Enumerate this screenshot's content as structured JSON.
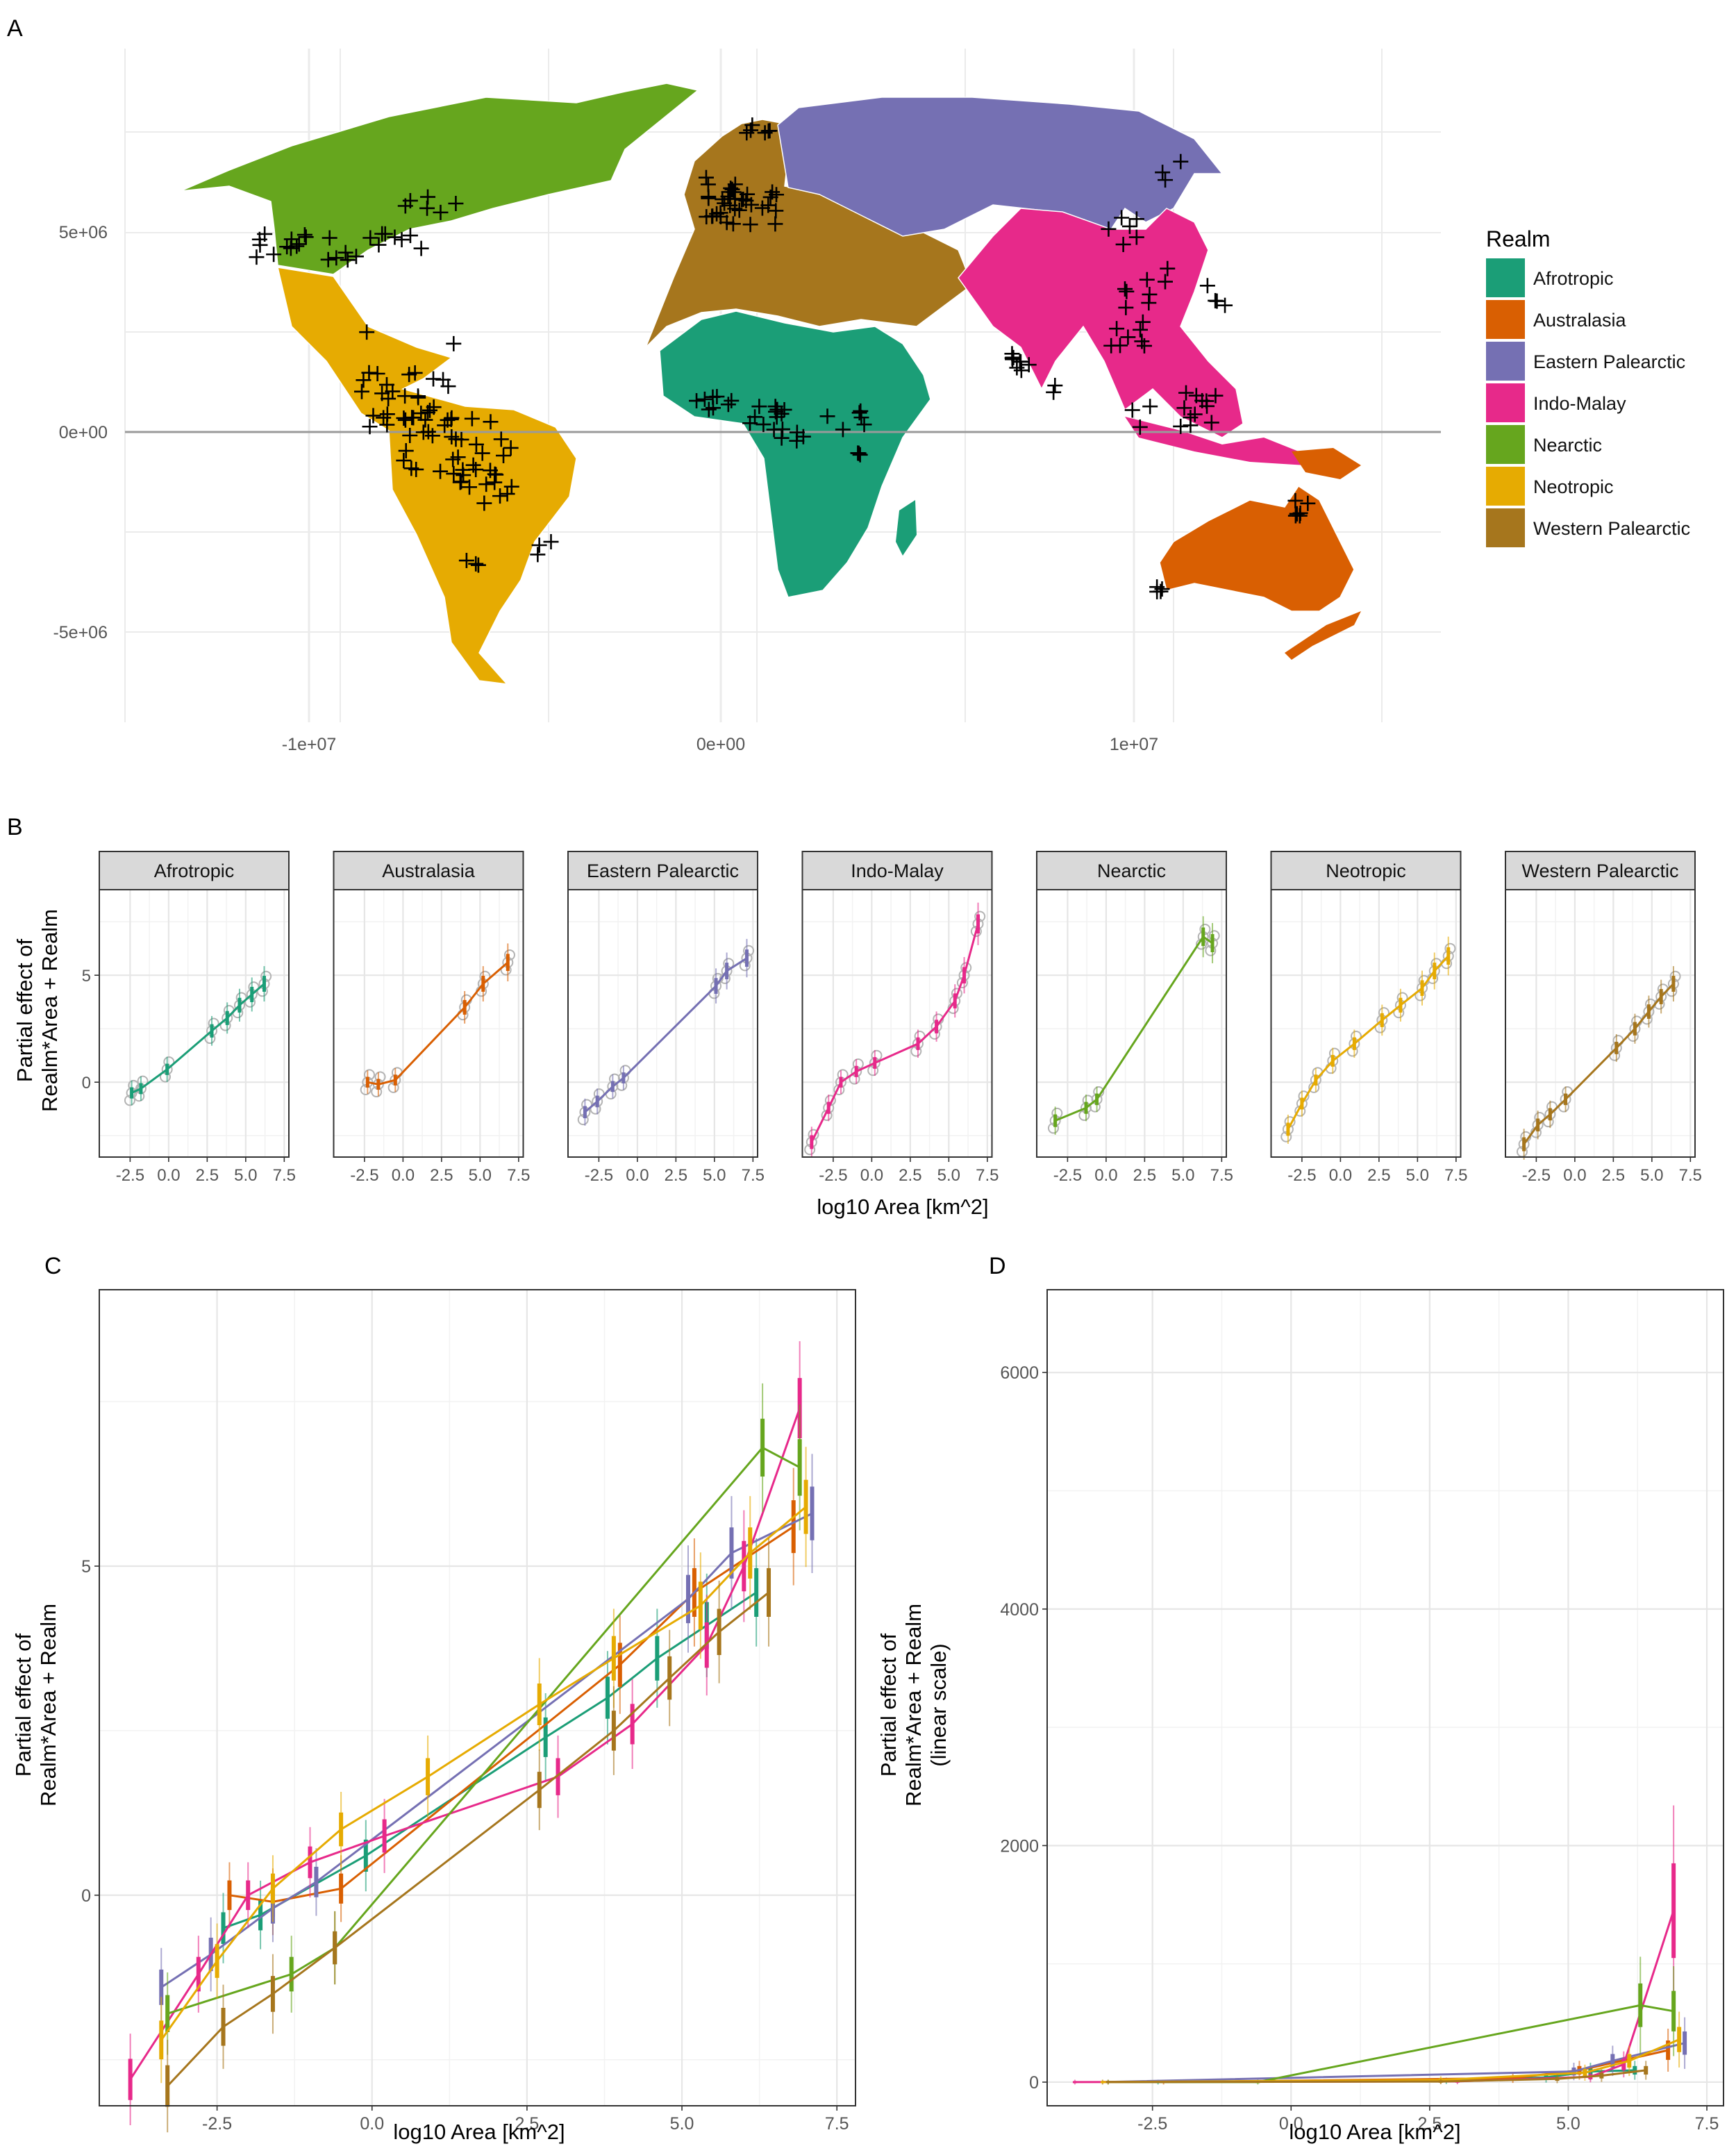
{
  "panels": {
    "A": "A",
    "B": "B",
    "C": "C",
    "D": "D"
  },
  "colors": {
    "Afrotropic": "#1b9e77",
    "Australasia": "#d95f02",
    "Eastern Palearctic": "#7570b3",
    "Indo-Malay": "#e7298a",
    "Nearctic": "#66a61e",
    "Neotropic": "#e6ab02",
    "Western Palearctic": "#a6761d",
    "observed": "#b3b3b3"
  },
  "chart_data": [
    {
      "panel": "A",
      "type": "map",
      "legend_title": "Realm",
      "legend_placement": "right",
      "legend": [
        "Afrotropic",
        "Australasia",
        "Eastern Palearctic",
        "Indo-Malay",
        "Nearctic",
        "Neotropic",
        "Western Palearctic"
      ],
      "xticks": [
        "-1e+07",
        "0e+00",
        "1e+07"
      ],
      "yticks": [
        "5e+06",
        "0e+00",
        "-5e+06"
      ],
      "grid": true
    },
    {
      "panel": "B",
      "type": "line",
      "xlabel": "log10 Area [km^2]",
      "ylabel": [
        "Partial effect of",
        "Realm*Area + Realm"
      ],
      "facets": [
        "Afrotropic",
        "Australasia",
        "Eastern Palearctic",
        "Indo-Malay",
        "Nearctic",
        "Neotropic",
        "Western Palearctic"
      ],
      "xticks": [
        "-2.5",
        "0.0",
        "2.5",
        "5.0",
        "7.5"
      ],
      "yticks": [
        "0",
        "5"
      ],
      "xlim": [
        -4.5,
        7.8
      ],
      "ylim": [
        -3.5,
        9
      ],
      "series": [
        {
          "name": "Afrotropic",
          "x": [
            -2.4,
            -1.8,
            -0.1,
            2.8,
            3.8,
            4.6,
            5.4,
            6.2
          ],
          "y": [
            -0.5,
            -0.3,
            0.6,
            2.4,
            3.0,
            3.6,
            4.1,
            4.6
          ]
        },
        {
          "name": "Australasia",
          "x": [
            -2.3,
            -1.6,
            -0.5,
            4.0,
            5.2,
            6.8
          ],
          "y": [
            0.0,
            -0.1,
            0.1,
            3.5,
            4.6,
            5.6
          ]
        },
        {
          "name": "Eastern Palearctic",
          "x": [
            -3.4,
            -2.6,
            -1.6,
            -0.9,
            5.1,
            5.8,
            7.1
          ],
          "y": [
            -1.4,
            -0.9,
            -0.2,
            0.2,
            4.5,
            5.2,
            5.8
          ]
        },
        {
          "name": "Indo-Malay",
          "x": [
            -3.9,
            -2.8,
            -2.0,
            -1.0,
            0.2,
            3.0,
            4.2,
            5.4,
            6.0,
            6.9
          ],
          "y": [
            -2.8,
            -1.2,
            0.0,
            0.5,
            0.9,
            1.8,
            2.6,
            3.8,
            5.0,
            7.4
          ]
        },
        {
          "name": "Nearctic",
          "x": [
            -3.3,
            -1.3,
            -0.6,
            6.3,
            6.9
          ],
          "y": [
            -1.8,
            -1.2,
            -0.8,
            6.8,
            6.5
          ]
        },
        {
          "name": "Neotropic",
          "x": [
            -3.4,
            -2.5,
            -1.6,
            -0.5,
            0.9,
            2.7,
            3.9,
            5.3,
            6.1,
            7.0
          ],
          "y": [
            -2.2,
            -1.0,
            0.1,
            1.0,
            1.8,
            2.9,
            3.6,
            4.4,
            5.2,
            5.9
          ]
        },
        {
          "name": "Western Palearctic",
          "x": [
            -3.3,
            -2.4,
            -1.6,
            -0.6,
            2.7,
            3.9,
            4.8,
            5.6,
            6.4
          ],
          "y": [
            -2.9,
            -2.0,
            -1.5,
            -0.8,
            1.6,
            2.5,
            3.3,
            4.0,
            4.6
          ]
        }
      ]
    },
    {
      "panel": "C",
      "type": "line",
      "xlabel": "log10 Area [km^2]",
      "ylabel": [
        "Partial effect of",
        "Realm*Area + Realm"
      ],
      "xticks": [
        "-2.5",
        "0.0",
        "2.5",
        "5.0",
        "7.5"
      ],
      "yticks": [
        "0",
        "5"
      ],
      "xlim": [
        -4.4,
        7.8
      ],
      "ylim": [
        -3.2,
        9.2
      ],
      "series": [
        {
          "name": "Afrotropic",
          "x": [
            -2.4,
            -1.8,
            -0.1,
            2.8,
            3.8,
            4.6,
            5.4,
            6.2
          ],
          "y": [
            -0.5,
            -0.3,
            0.6,
            2.4,
            3.0,
            3.6,
            4.1,
            4.6
          ]
        },
        {
          "name": "Australasia",
          "x": [
            -2.3,
            -1.6,
            -0.5,
            4.0,
            5.2,
            6.8
          ],
          "y": [
            0.0,
            -0.1,
            0.1,
            3.5,
            4.6,
            5.6
          ]
        },
        {
          "name": "Eastern Palearctic",
          "x": [
            -3.4,
            -2.6,
            -1.6,
            -0.9,
            5.1,
            5.8,
            7.1
          ],
          "y": [
            -1.4,
            -0.9,
            -0.2,
            0.2,
            4.5,
            5.2,
            5.8
          ]
        },
        {
          "name": "Indo-Malay",
          "x": [
            -3.9,
            -2.8,
            -2.0,
            -1.0,
            0.2,
            3.0,
            4.2,
            5.4,
            6.0,
            6.9
          ],
          "y": [
            -2.8,
            -1.2,
            0.0,
            0.5,
            0.9,
            1.8,
            2.6,
            3.8,
            5.0,
            7.4
          ]
        },
        {
          "name": "Nearctic",
          "x": [
            -3.3,
            -1.3,
            -0.6,
            6.3,
            6.9
          ],
          "y": [
            -1.8,
            -1.2,
            -0.8,
            6.8,
            6.5
          ]
        },
        {
          "name": "Neotropic",
          "x": [
            -3.4,
            -2.5,
            -1.6,
            -0.5,
            0.9,
            2.7,
            3.9,
            5.3,
            6.1,
            7.0
          ],
          "y": [
            -2.2,
            -1.0,
            0.1,
            1.0,
            1.8,
            2.9,
            3.6,
            4.4,
            5.2,
            5.9
          ]
        },
        {
          "name": "Western Palearctic",
          "x": [
            -3.3,
            -2.4,
            -1.6,
            -0.6,
            2.7,
            3.9,
            4.8,
            5.6,
            6.4
          ],
          "y": [
            -2.9,
            -2.0,
            -1.5,
            -0.8,
            1.6,
            2.5,
            3.3,
            4.0,
            4.6
          ]
        }
      ]
    },
    {
      "panel": "D",
      "type": "line",
      "xlabel": "log10 Area [km^2]",
      "ylabel": [
        "Partial effect of",
        "Realm*Area + Realm",
        "(linear scale)"
      ],
      "xticks": [
        "-2.5",
        "0.0",
        "2.5",
        "5.0",
        "7.5"
      ],
      "yticks": [
        "0",
        "2000",
        "4000",
        "6000"
      ],
      "xlim": [
        -4.4,
        7.8
      ],
      "ylim": [
        -200,
        6700
      ],
      "series": [
        {
          "name": "Afrotropic",
          "x": [
            -2.4,
            2.8,
            4.6,
            5.4,
            6.2
          ],
          "y": [
            0,
            11,
            40,
            90,
            100
          ]
        },
        {
          "name": "Australasia",
          "x": [
            -2.3,
            4.0,
            5.2,
            6.8
          ],
          "y": [
            0,
            33,
            100,
            270
          ]
        },
        {
          "name": "Eastern Palearctic",
          "x": [
            -3.4,
            5.1,
            5.8,
            7.1
          ],
          "y": [
            0,
            90,
            180,
            330
          ]
        },
        {
          "name": "Indo-Malay",
          "x": [
            -3.9,
            3.0,
            5.4,
            6.0,
            6.9
          ],
          "y": [
            0,
            6,
            45,
            150,
            1450
          ]
        },
        {
          "name": "Nearctic",
          "x": [
            -3.3,
            -0.6,
            6.3,
            6.9
          ],
          "y": [
            0,
            0,
            650,
            600
          ]
        },
        {
          "name": "Neotropic",
          "x": [
            -3.4,
            2.7,
            5.3,
            6.1,
            7.0
          ],
          "y": [
            0,
            18,
            80,
            180,
            360
          ]
        },
        {
          "name": "Western Palearctic",
          "x": [
            -3.3,
            2.7,
            4.8,
            5.6,
            6.4
          ],
          "y": [
            0,
            5,
            27,
            55,
            100
          ]
        }
      ]
    }
  ]
}
